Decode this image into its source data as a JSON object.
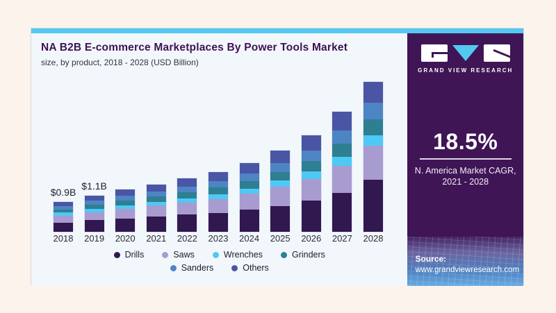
{
  "header": {
    "title": "NA B2B E-commerce Marketplaces By Power Tools Market",
    "subtitle": "size, by product, 2018 - 2028 (USD Billion)"
  },
  "chart_data": {
    "type": "bar",
    "stacked": true,
    "title": "NA B2B E-commerce Marketplaces By Power Tools Market size, by product, 2018 - 2028 (USD Billion)",
    "unit": "USD Billion",
    "categories": [
      "2018",
      "2019",
      "2020",
      "2021",
      "2022",
      "2023",
      "2024",
      "2025",
      "2026",
      "2027",
      "2028"
    ],
    "series": [
      {
        "name": "Drills",
        "color": "#31184f",
        "values": [
          0.28,
          0.35,
          0.41,
          0.46,
          0.52,
          0.58,
          0.67,
          0.79,
          0.94,
          1.17,
          1.57
        ]
      },
      {
        "name": "Saws",
        "color": "#a89bd0",
        "values": [
          0.21,
          0.25,
          0.29,
          0.33,
          0.37,
          0.42,
          0.48,
          0.57,
          0.67,
          0.84,
          1.04
        ]
      },
      {
        "name": "Wrenches",
        "color": "#4ec9f5",
        "values": [
          0.09,
          0.1,
          0.11,
          0.12,
          0.13,
          0.14,
          0.16,
          0.19,
          0.22,
          0.27,
          0.32
        ]
      },
      {
        "name": "Grinders",
        "color": "#2e7f91",
        "values": [
          0.1,
          0.12,
          0.14,
          0.16,
          0.18,
          0.2,
          0.23,
          0.27,
          0.32,
          0.4,
          0.48
        ]
      },
      {
        "name": "Sanders",
        "color": "#4d85c4",
        "values": [
          0.1,
          0.12,
          0.14,
          0.16,
          0.18,
          0.2,
          0.23,
          0.27,
          0.32,
          0.4,
          0.5
        ]
      },
      {
        "name": "Others",
        "color": "#4a55a5",
        "values": [
          0.12,
          0.16,
          0.19,
          0.21,
          0.25,
          0.28,
          0.32,
          0.38,
          0.46,
          0.56,
          0.63
        ]
      }
    ],
    "totals": [
      0.9,
      1.1,
      1.28,
      1.44,
      1.63,
      1.82,
      2.09,
      2.47,
      2.93,
      3.64,
      4.54
    ],
    "value_labels": [
      {
        "category": "2018",
        "label": "$0.9B"
      },
      {
        "category": "2019",
        "label": "$1.1B"
      }
    ],
    "legend_rows": [
      [
        "Drills",
        "Saws",
        "Wrenches",
        "Grinders"
      ],
      [
        "Sanders",
        "Others"
      ]
    ],
    "legend_position": "bottom",
    "ylim": [
      0,
      5
    ],
    "grid": false
  },
  "sidebar": {
    "brand": "GRAND VIEW RESEARCH",
    "cagr_value": "18.5%",
    "cagr_label_line1": "N. America Market CAGR,",
    "cagr_label_line2": "2021 - 2028",
    "source_label": "Source:",
    "source_url": "www.grandviewresearch.com"
  },
  "colors": {
    "page_background": "#fcf3ec",
    "chart_background": "#f2f7fb",
    "accent_cyan": "#53c9f2",
    "panel_purple": "#3f1556",
    "title_purple": "#3e1254"
  }
}
